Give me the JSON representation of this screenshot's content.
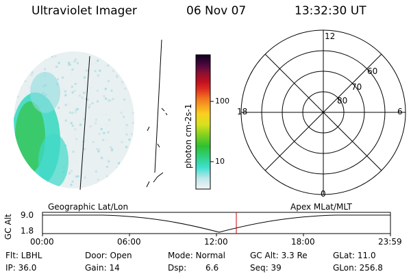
{
  "header": {
    "title": "Ultraviolet Imager",
    "date": "06 Nov 07",
    "time": "13:32:30 UT"
  },
  "colorbar": {
    "unit_label": "photon cm-2s-1",
    "ticks": [
      "100",
      "10"
    ]
  },
  "polar_plot": {
    "mlt_labels": {
      "top": "12",
      "bottom": "0",
      "left": "18",
      "right": "6"
    },
    "lat_labels": [
      "60",
      "70",
      "80"
    ]
  },
  "orbit_panel": {
    "left_title": "Geographic Lat/Lon",
    "right_title": "Apex MLat/MLT",
    "y_axis_label": "GC Alt",
    "y_ticks": [
      "9.0",
      "1.8"
    ],
    "x_ticks": [
      "00:00",
      "06:00",
      "12:00",
      "18:00",
      "23:59"
    ],
    "marker_color": "#cc0000"
  },
  "info": {
    "row1": {
      "flt": "Flt: LBHL",
      "door": "Door: Open",
      "mode": "Mode: Normal",
      "gc_alt": "GC Alt: 3.3 Re",
      "glat": "GLat: 11.0"
    },
    "row2": {
      "ip": "IP: 36.0",
      "gain": "Gain: 14",
      "dsp_label": "Dsp:",
      "dsp_value": "6.6",
      "seq": "Seq: 39",
      "glon": "GLon: 256.8"
    }
  }
}
